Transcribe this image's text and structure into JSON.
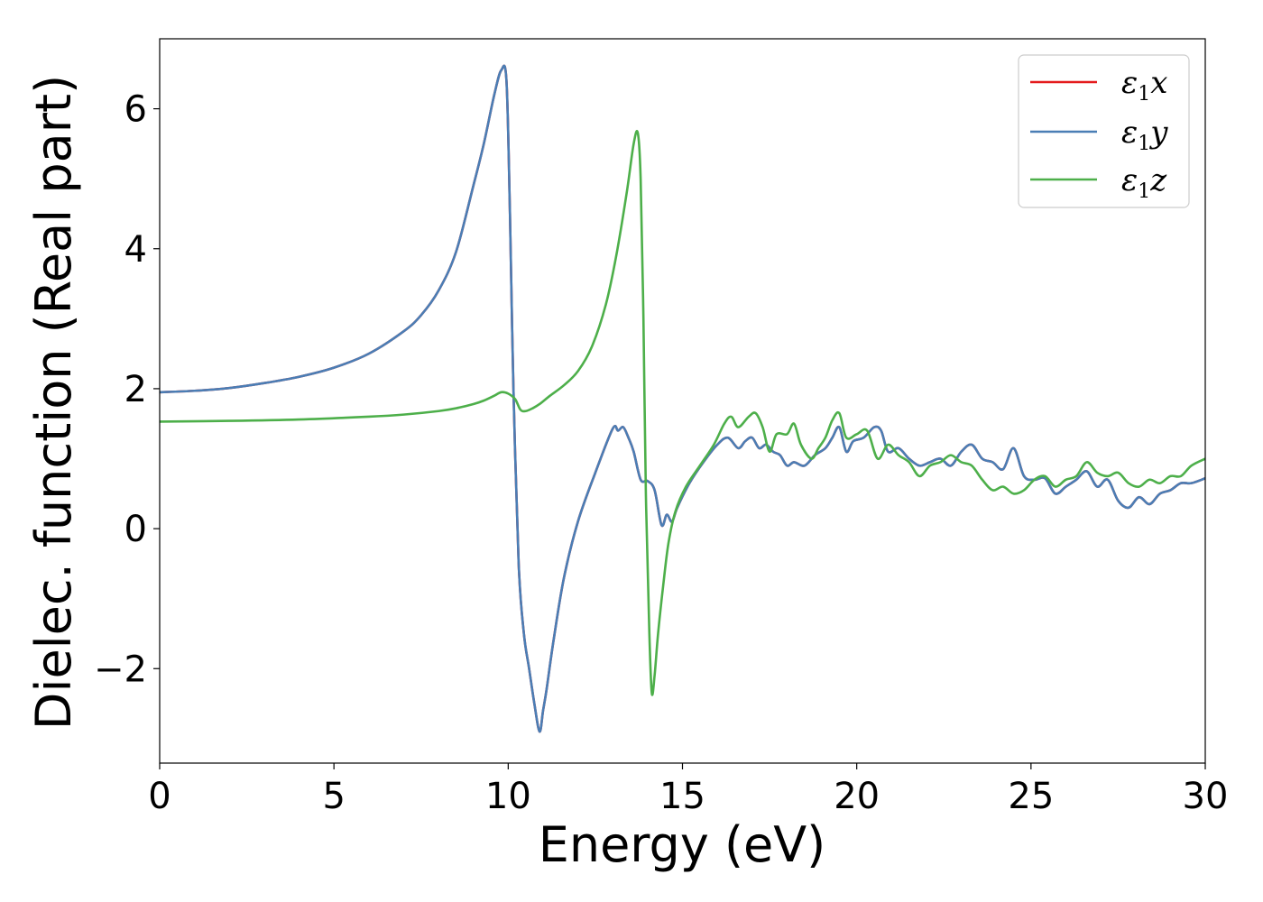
{
  "chart_data": {
    "type": "line",
    "xlabel": "Energy (eV)",
    "ylabel": "Dielec. function (Real part)",
    "xlim": [
      0,
      30
    ],
    "ylim": [
      -3.35,
      7.0
    ],
    "xticks": [
      0,
      5,
      10,
      15,
      20,
      25,
      30
    ],
    "yticks": [
      -2,
      0,
      2,
      4,
      6
    ],
    "xtick_labels": [
      "0",
      "5",
      "10",
      "15",
      "20",
      "25",
      "30"
    ],
    "ytick_labels": [
      "−2",
      "0",
      "2",
      "4",
      "6"
    ],
    "grid": false,
    "legend_position": "top-right",
    "series": [
      {
        "name": "ε₁x",
        "legend_base": "ε",
        "legend_sub": "1",
        "legend_var": "x",
        "color": "#e41a1c",
        "x": [
          0,
          1,
          2,
          3,
          4,
          5,
          6,
          7,
          7.5,
          8,
          8.5,
          9,
          9.3,
          9.6,
          9.8,
          9.95,
          10.05,
          10.15,
          10.3,
          10.45,
          10.6,
          10.75,
          10.9,
          11.0,
          11.1,
          11.3,
          11.6,
          12.0,
          12.5,
          13.0,
          13.15,
          13.3,
          13.45,
          13.6,
          13.8,
          14.0,
          14.2,
          14.4,
          14.55,
          14.7,
          14.85,
          15.2,
          15.6,
          16.0,
          16.3,
          16.6,
          16.8,
          17.0,
          17.2,
          17.4,
          17.6,
          17.8,
          18.0,
          18.2,
          18.5,
          18.8,
          19.1,
          19.3,
          19.5,
          19.7,
          19.9,
          20.2,
          20.5,
          20.7,
          20.9,
          21.2,
          21.5,
          21.8,
          22.1,
          22.4,
          22.7,
          23.0,
          23.3,
          23.6,
          23.9,
          24.2,
          24.5,
          24.8,
          25.1,
          25.4,
          25.7,
          26.0,
          26.3,
          26.6,
          26.9,
          27.2,
          27.5,
          27.8,
          28.1,
          28.4,
          28.7,
          29.0,
          29.3,
          29.6,
          30.0
        ],
        "values": [
          1.95,
          1.97,
          2.01,
          2.08,
          2.17,
          2.3,
          2.5,
          2.82,
          3.05,
          3.4,
          3.95,
          4.9,
          5.5,
          6.2,
          6.55,
          6.4,
          4.5,
          2.0,
          -0.5,
          -1.5,
          -2.0,
          -2.5,
          -2.9,
          -2.6,
          -2.3,
          -1.6,
          -0.7,
          0.1,
          0.8,
          1.43,
          1.4,
          1.45,
          1.3,
          1.1,
          0.7,
          0.68,
          0.55,
          0.05,
          0.2,
          0.1,
          0.3,
          0.65,
          0.95,
          1.2,
          1.3,
          1.15,
          1.25,
          1.3,
          1.15,
          1.2,
          1.1,
          1.05,
          0.9,
          0.95,
          0.9,
          1.05,
          1.15,
          1.3,
          1.45,
          1.1,
          1.25,
          1.3,
          1.45,
          1.4,
          1.1,
          1.15,
          1.0,
          0.9,
          0.95,
          1.0,
          0.9,
          1.1,
          1.2,
          1.0,
          0.95,
          0.85,
          1.15,
          0.75,
          0.7,
          0.72,
          0.5,
          0.6,
          0.7,
          0.82,
          0.6,
          0.7,
          0.4,
          0.3,
          0.45,
          0.35,
          0.5,
          0.55,
          0.65,
          0.65,
          0.72
        ]
      },
      {
        "name": "ε₁y",
        "legend_base": "ε",
        "legend_sub": "1",
        "legend_var": "y",
        "color": "#4a7eb5",
        "x": [
          0,
          1,
          2,
          3,
          4,
          5,
          6,
          7,
          7.5,
          8,
          8.5,
          9,
          9.3,
          9.6,
          9.8,
          9.95,
          10.05,
          10.15,
          10.3,
          10.45,
          10.6,
          10.75,
          10.9,
          11.0,
          11.1,
          11.3,
          11.6,
          12.0,
          12.5,
          13.0,
          13.15,
          13.3,
          13.45,
          13.6,
          13.8,
          14.0,
          14.2,
          14.4,
          14.55,
          14.7,
          14.85,
          15.2,
          15.6,
          16.0,
          16.3,
          16.6,
          16.8,
          17.0,
          17.2,
          17.4,
          17.6,
          17.8,
          18.0,
          18.2,
          18.5,
          18.8,
          19.1,
          19.3,
          19.5,
          19.7,
          19.9,
          20.2,
          20.5,
          20.7,
          20.9,
          21.2,
          21.5,
          21.8,
          22.1,
          22.4,
          22.7,
          23.0,
          23.3,
          23.6,
          23.9,
          24.2,
          24.5,
          24.8,
          25.1,
          25.4,
          25.7,
          26.0,
          26.3,
          26.6,
          26.9,
          27.2,
          27.5,
          27.8,
          28.1,
          28.4,
          28.7,
          29.0,
          29.3,
          29.6,
          30.0
        ],
        "values": [
          1.95,
          1.97,
          2.01,
          2.08,
          2.17,
          2.3,
          2.5,
          2.82,
          3.05,
          3.4,
          3.95,
          4.9,
          5.5,
          6.2,
          6.55,
          6.4,
          4.5,
          2.0,
          -0.5,
          -1.5,
          -2.0,
          -2.5,
          -2.9,
          -2.6,
          -2.3,
          -1.6,
          -0.7,
          0.1,
          0.8,
          1.43,
          1.4,
          1.45,
          1.3,
          1.1,
          0.7,
          0.68,
          0.55,
          0.05,
          0.2,
          0.1,
          0.3,
          0.65,
          0.95,
          1.2,
          1.3,
          1.15,
          1.25,
          1.3,
          1.15,
          1.2,
          1.1,
          1.05,
          0.9,
          0.95,
          0.9,
          1.05,
          1.15,
          1.3,
          1.45,
          1.1,
          1.25,
          1.3,
          1.45,
          1.4,
          1.1,
          1.15,
          1.0,
          0.9,
          0.95,
          1.0,
          0.9,
          1.1,
          1.2,
          1.0,
          0.95,
          0.85,
          1.15,
          0.75,
          0.7,
          0.72,
          0.5,
          0.6,
          0.7,
          0.82,
          0.6,
          0.7,
          0.4,
          0.3,
          0.45,
          0.35,
          0.5,
          0.55,
          0.65,
          0.65,
          0.72
        ]
      },
      {
        "name": "ε₁z",
        "legend_base": "ε",
        "legend_sub": "1",
        "legend_var": "z",
        "color": "#4daf4a",
        "x": [
          0,
          2,
          4,
          6,
          7,
          8,
          8.5,
          9,
          9.3,
          9.6,
          9.8,
          10.0,
          10.2,
          10.35,
          10.5,
          10.7,
          10.9,
          11.2,
          11.6,
          12.0,
          12.4,
          12.8,
          13.1,
          13.4,
          13.6,
          13.72,
          13.8,
          13.88,
          13.95,
          14.05,
          14.12,
          14.2,
          14.3,
          14.45,
          14.6,
          14.8,
          15.1,
          15.5,
          15.9,
          16.2,
          16.4,
          16.6,
          16.9,
          17.1,
          17.3,
          17.5,
          17.7,
          18.0,
          18.2,
          18.4,
          18.7,
          18.9,
          19.1,
          19.3,
          19.5,
          19.7,
          20.0,
          20.3,
          20.6,
          20.9,
          21.2,
          21.5,
          21.8,
          22.1,
          22.4,
          22.7,
          23.0,
          23.3,
          23.6,
          23.9,
          24.2,
          24.5,
          24.8,
          25.1,
          25.4,
          25.7,
          26.0,
          26.3,
          26.6,
          26.9,
          27.2,
          27.5,
          27.8,
          28.1,
          28.4,
          28.7,
          29.0,
          29.3,
          29.6,
          30.0
        ],
        "values": [
          1.53,
          1.54,
          1.56,
          1.6,
          1.63,
          1.68,
          1.72,
          1.78,
          1.83,
          1.9,
          1.95,
          1.93,
          1.85,
          1.7,
          1.68,
          1.72,
          1.78,
          1.9,
          2.05,
          2.25,
          2.6,
          3.2,
          3.9,
          4.8,
          5.5,
          5.65,
          5.0,
          3.0,
          0.5,
          -1.5,
          -2.35,
          -2.1,
          -1.5,
          -0.8,
          -0.2,
          0.25,
          0.6,
          0.9,
          1.2,
          1.5,
          1.6,
          1.45,
          1.6,
          1.65,
          1.45,
          1.1,
          1.35,
          1.35,
          1.5,
          1.2,
          1.0,
          1.15,
          1.3,
          1.55,
          1.65,
          1.3,
          1.35,
          1.4,
          1.0,
          1.2,
          1.05,
          0.95,
          0.75,
          0.9,
          0.95,
          1.05,
          0.95,
          0.9,
          0.7,
          0.55,
          0.6,
          0.5,
          0.55,
          0.7,
          0.75,
          0.6,
          0.7,
          0.75,
          0.95,
          0.8,
          0.75,
          0.8,
          0.65,
          0.6,
          0.7,
          0.65,
          0.75,
          0.75,
          0.9,
          1.0
        ]
      }
    ]
  }
}
